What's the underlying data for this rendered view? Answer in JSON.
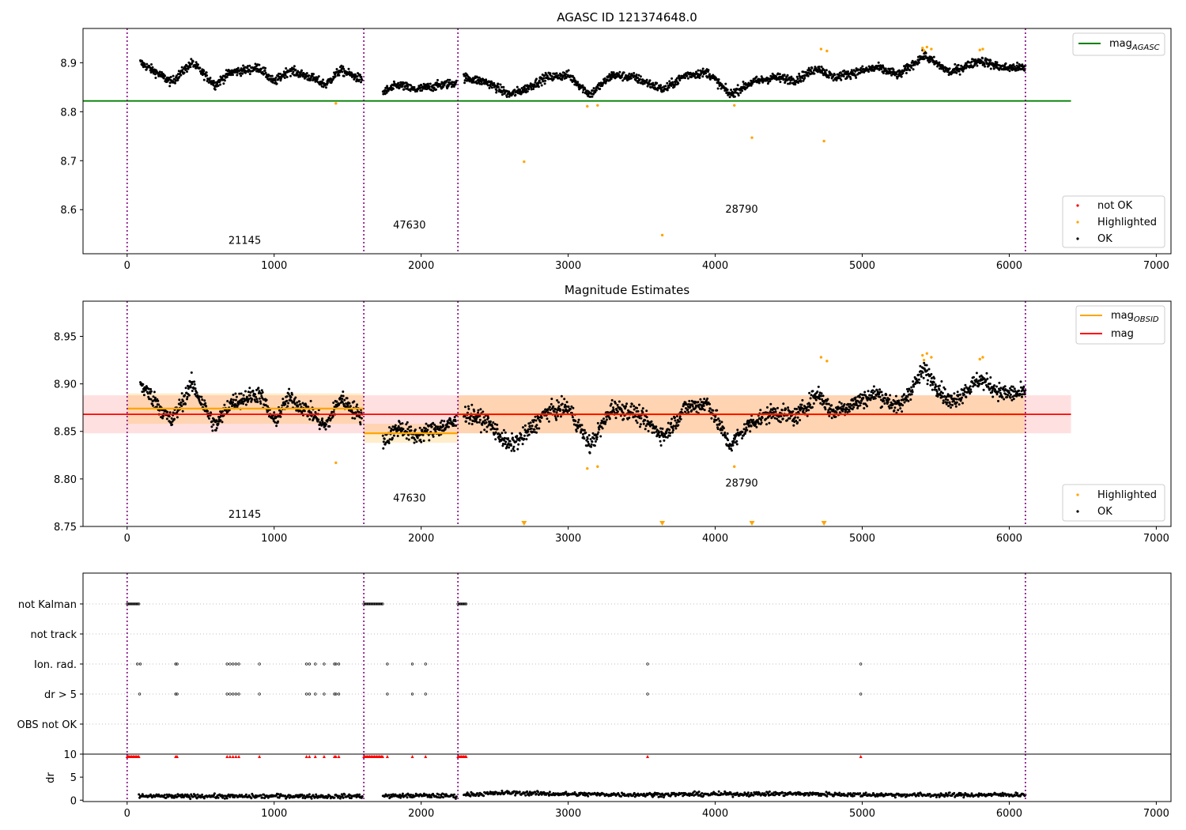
{
  "chart_data": [
    {
      "type": "scatter",
      "title": "AGASC ID 121374648.0",
      "xlim": [
        -300,
        7100
      ],
      "ylim": [
        8.51,
        8.97
      ],
      "x_ticks": [
        0,
        1000,
        2000,
        3000,
        4000,
        5000,
        6000,
        7000
      ],
      "x_tick_labels": [
        "0",
        "1000",
        "2000",
        "3000",
        "4000",
        "5000",
        "6000",
        "7000"
      ],
      "y_ticks": [
        8.6,
        8.7,
        8.8,
        8.9
      ],
      "y_tick_labels": [
        "8.6",
        "8.7",
        "8.8",
        "8.9"
      ],
      "obs_boundaries": [
        0,
        1610,
        2250,
        6110
      ],
      "obs_labels": [
        {
          "text": "21145",
          "x": 800,
          "y": 8.53
        },
        {
          "text": "47630",
          "x": 1920,
          "y": 8.562
        },
        {
          "text": "28790",
          "x": 4180,
          "y": 8.594
        }
      ],
      "mag_agasc": 8.822,
      "mag_agasc_x_range": [
        -300,
        6420
      ],
      "legend_top": {
        "position": "top-right",
        "entries": [
          {
            "base": "mag",
            "sub": "AGASC",
            "color": "#008000"
          }
        ]
      },
      "legend_bottom": {
        "position": "bottom-right",
        "entries": [
          {
            "label": "not OK",
            "color": "#ff0000"
          },
          {
            "label": "Highlighted",
            "color": "#ffa500"
          },
          {
            "label": "OK",
            "color": "#000000"
          }
        ]
      },
      "series": [
        {
          "name": "OK",
          "color": "#000000",
          "segments": [
            {
              "x": [
                90,
                200,
                300,
                440,
                600,
                700,
                900,
                1000,
                1100,
                1250,
                1350,
                1450,
                1600
              ],
              "y": [
                8.9,
                8.88,
                8.86,
                8.9,
                8.855,
                8.88,
                8.89,
                8.86,
                8.885,
                8.87,
                8.855,
                8.885,
                8.865
              ]
            },
            {
              "x": [
                1740,
                1850,
                1950,
                2050,
                2150,
                2240
              ],
              "y": [
                8.84,
                8.855,
                8.845,
                8.85,
                8.855,
                8.86
              ]
            },
            {
              "x": [
                2290,
                2450,
                2600,
                2700,
                2850,
                3000,
                3150,
                3300,
                3450,
                3650,
                3800,
                3950,
                4100,
                4250,
                4400,
                4550,
                4700,
                4800,
                4950,
                5100,
                5250,
                5420,
                5600,
                5800,
                5950,
                6110
              ],
              "y": [
                8.87,
                8.86,
                8.835,
                8.845,
                8.87,
                8.875,
                8.835,
                8.875,
                8.87,
                8.845,
                8.875,
                8.88,
                8.835,
                8.86,
                8.87,
                8.865,
                8.89,
                8.87,
                8.88,
                8.89,
                8.875,
                8.915,
                8.88,
                8.905,
                8.89,
                8.89
              ]
            }
          ]
        },
        {
          "name": "Highlighted",
          "color": "#ffa500",
          "points": [
            [
              1420,
              8.817
            ],
            [
              2700,
              8.698
            ],
            [
              3130,
              8.811
            ],
            [
              3200,
              8.813
            ],
            [
              3640,
              8.548
            ],
            [
              4130,
              8.813
            ],
            [
              4250,
              8.747
            ],
            [
              4720,
              8.928
            ],
            [
              4740,
              8.74
            ],
            [
              4760,
              8.924
            ],
            [
              5410,
              8.93
            ],
            [
              5420,
              8.925
            ],
            [
              5440,
              8.932
            ],
            [
              5470,
              8.928
            ],
            [
              5800,
              8.926
            ],
            [
              5820,
              8.928
            ]
          ]
        }
      ]
    },
    {
      "type": "scatter",
      "title": "Magnitude Estimates",
      "xlim": [
        -300,
        7100
      ],
      "ylim": [
        8.75,
        8.987
      ],
      "x_ticks": [
        0,
        1000,
        2000,
        3000,
        4000,
        5000,
        6000,
        7000
      ],
      "x_tick_labels": [
        "0",
        "1000",
        "2000",
        "3000",
        "4000",
        "5000",
        "6000",
        "7000"
      ],
      "y_ticks": [
        8.75,
        8.8,
        8.85,
        8.9,
        8.95
      ],
      "y_tick_labels": [
        "8.75",
        "8.80",
        "8.85",
        "8.90",
        "8.95"
      ],
      "obs_boundaries": [
        0,
        1610,
        2250,
        6110
      ],
      "obs_labels": [
        {
          "text": "21145",
          "x": 800,
          "y": 8.759
        },
        {
          "text": "47630",
          "x": 1920,
          "y": 8.776
        },
        {
          "text": "28790",
          "x": 4180,
          "y": 8.792
        }
      ],
      "mag": 8.868,
      "mag_band": [
        8.848,
        8.888
      ],
      "mag_x_range": [
        -300,
        6420
      ],
      "mag_obsid": [
        {
          "x0": 0,
          "x1": 1610,
          "value": 8.874,
          "band": [
            8.858,
            8.89
          ]
        },
        {
          "x0": 1610,
          "x1": 2250,
          "value": 8.848,
          "band": [
            8.838,
            8.858
          ]
        },
        {
          "x0": 2250,
          "x1": 6110,
          "value": 8.868,
          "band": [
            8.848,
            8.888
          ]
        }
      ],
      "legend_top": {
        "position": "top-right",
        "entries": [
          {
            "base": "mag",
            "sub": "OBSID",
            "color": "#ffa500"
          },
          {
            "base": "mag",
            "sub": "",
            "color": "#ff0000"
          }
        ]
      },
      "legend_bottom": {
        "position": "bottom-right",
        "entries": [
          {
            "label": "Highlighted",
            "color": "#ffa500"
          },
          {
            "label": "OK",
            "color": "#000000"
          }
        ]
      },
      "series": [
        {
          "name": "OK",
          "color": "#000000",
          "segments": [
            {
              "x": [
                90,
                200,
                300,
                440,
                600,
                700,
                900,
                1000,
                1100,
                1250,
                1350,
                1450,
                1600
              ],
              "y": [
                8.9,
                8.88,
                8.86,
                8.9,
                8.855,
                8.88,
                8.89,
                8.86,
                8.885,
                8.87,
                8.855,
                8.885,
                8.865
              ]
            },
            {
              "x": [
                1740,
                1850,
                1950,
                2050,
                2150,
                2240
              ],
              "y": [
                8.84,
                8.855,
                8.845,
                8.85,
                8.855,
                8.86
              ]
            },
            {
              "x": [
                2290,
                2450,
                2600,
                2700,
                2850,
                3000,
                3150,
                3300,
                3450,
                3650,
                3800,
                3950,
                4100,
                4250,
                4400,
                4550,
                4700,
                4800,
                4950,
                5100,
                5250,
                5420,
                5600,
                5800,
                5950,
                6110
              ],
              "y": [
                8.87,
                8.86,
                8.835,
                8.845,
                8.87,
                8.875,
                8.835,
                8.875,
                8.87,
                8.845,
                8.875,
                8.88,
                8.835,
                8.86,
                8.87,
                8.865,
                8.89,
                8.87,
                8.88,
                8.89,
                8.875,
                8.915,
                8.88,
                8.905,
                8.89,
                8.89
              ]
            }
          ]
        },
        {
          "name": "Highlighted",
          "color": "#ffa500",
          "points": [
            [
              1420,
              8.817
            ],
            [
              3130,
              8.811
            ],
            [
              3200,
              8.813
            ],
            [
              4130,
              8.813
            ],
            [
              4720,
              8.928
            ],
            [
              4760,
              8.924
            ],
            [
              5410,
              8.93
            ],
            [
              5420,
              8.925
            ],
            [
              5440,
              8.932
            ],
            [
              5470,
              8.928
            ],
            [
              5800,
              8.926
            ],
            [
              5820,
              8.928
            ]
          ]
        },
        {
          "name": "Highlighted (below range)",
          "color": "#ffa500",
          "marker": "triangle-down",
          "x": [
            2700,
            3640,
            4250,
            4740
          ]
        }
      ]
    },
    {
      "type": "scatter",
      "title": "",
      "xlim": [
        -300,
        7100
      ],
      "x_ticks": [
        0,
        1000,
        2000,
        3000,
        4000,
        5000,
        6000,
        7000
      ],
      "x_tick_labels": [
        "0",
        "1000",
        "2000",
        "3000",
        "4000",
        "5000",
        "6000",
        "7000"
      ],
      "obs_boundaries": [
        0,
        1610,
        2250,
        6110
      ],
      "flags": {
        "categories": [
          "not Kalman",
          "not track",
          "Ion. rad.",
          "dr > 5",
          "OBS not OK"
        ],
        "not Kalman": {
          "ranges": [
            [
              0,
              80
            ],
            [
              1610,
              1740
            ],
            [
              2250,
              2310
            ]
          ]
        },
        "not track": {
          "x": []
        },
        "Ion. rad.": {
          "x": [
            70,
            90,
            330,
            340,
            680,
            700,
            720,
            740,
            760,
            900,
            1220,
            1240,
            1280,
            1340,
            1410,
            1420,
            1440,
            1770,
            1940,
            2030,
            3540,
            4990
          ]
        },
        "dr > 5": {
          "x": [
            85,
            330,
            340,
            680,
            700,
            720,
            740,
            760,
            900,
            1220,
            1240,
            1280,
            1340,
            1410,
            1420,
            1440,
            1770,
            1940,
            2030,
            3540,
            4990
          ]
        },
        "OBS not OK": {
          "x": []
        }
      },
      "dr": {
        "ylabel": "dr",
        "ylim": [
          -0.3,
          10
        ],
        "y_ticks": [
          0,
          5,
          10
        ],
        "y_tick_labels": [
          "0",
          "5",
          "10"
        ],
        "segments": [
          {
            "x": [
              80,
              300,
              500,
              800,
              1100,
              1400,
              1600
            ],
            "y": [
              0.9,
              0.8,
              0.9,
              0.8,
              0.9,
              0.8,
              0.9
            ]
          },
          {
            "x": [
              1740,
              2000,
              2240
            ],
            "y": [
              0.9,
              1.0,
              0.9
            ]
          },
          {
            "x": [
              2290,
              2600,
              3000,
              3500,
              4000,
              4500,
              5000,
              5500,
              6110
            ],
            "y": [
              1.2,
              1.6,
              1.3,
              1.2,
              1.3,
              1.4,
              1.2,
              1.1,
              1.2
            ]
          }
        ],
        "clipped_points": {
          "color": "#ff0000",
          "ranges": [
            [
              0,
              80
            ],
            [
              1610,
              1740
            ],
            [
              2250,
              2310
            ]
          ],
          "x": [
            330,
            340,
            680,
            700,
            720,
            740,
            760,
            900,
            1220,
            1240,
            1280,
            1340,
            1410,
            1420,
            1440,
            1770,
            1940,
            2030,
            3540,
            4990
          ]
        }
      }
    }
  ]
}
